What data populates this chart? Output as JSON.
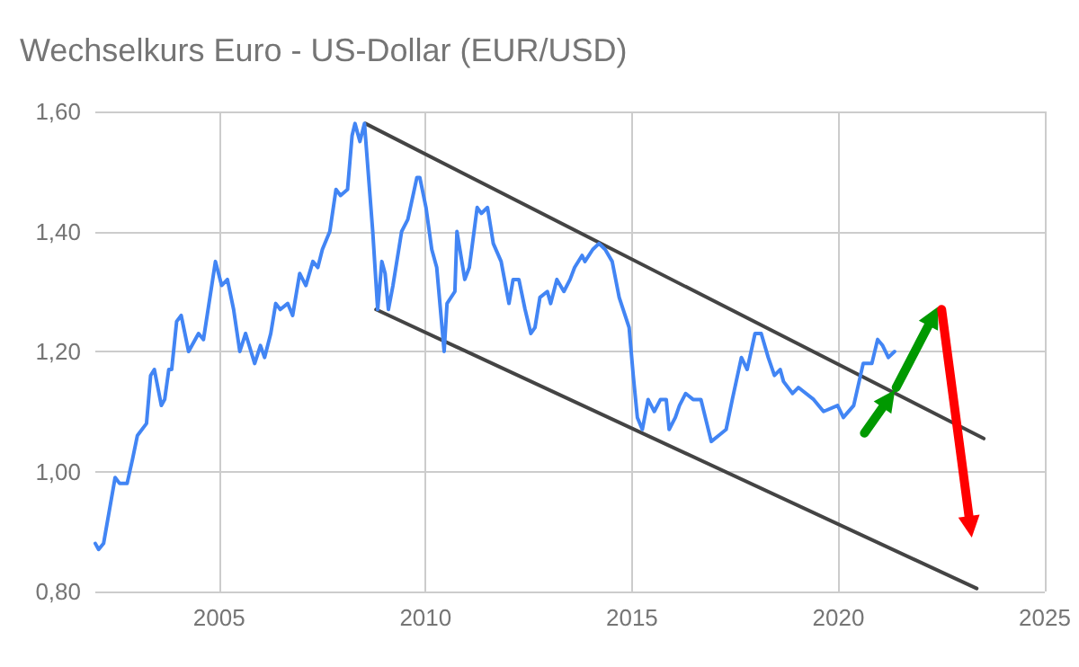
{
  "chart_data": {
    "type": "line",
    "title": "Wechselkurs Euro - US-Dollar (EUR/USD)",
    "xlim": [
      2002,
      2025
    ],
    "xticks": [
      2005,
      2010,
      2015,
      2020,
      2025
    ],
    "ylim": [
      0.8,
      1.6
    ],
    "yticks": [
      {
        "value": 0.8,
        "label": "0,80"
      },
      {
        "value": 1.0,
        "label": "1,00"
      },
      {
        "value": 1.2,
        "label": "1,20"
      },
      {
        "value": 1.4,
        "label": "1,40"
      },
      {
        "value": 1.6,
        "label": "1,60"
      }
    ],
    "grid": true,
    "marker": "none",
    "line_style": "solid",
    "series": [
      {
        "color": "#4285f4",
        "x": [
          2002.0,
          2002.08,
          2002.2,
          2002.48,
          2002.59,
          2002.77,
          2002.9,
          2003.02,
          2003.24,
          2003.34,
          2003.43,
          2003.6,
          2003.68,
          2003.78,
          2003.85,
          2003.97,
          2004.08,
          2004.26,
          2004.5,
          2004.62,
          2004.91,
          2005.06,
          2005.2,
          2005.35,
          2005.5,
          2005.64,
          2005.86,
          2006.0,
          2006.1,
          2006.25,
          2006.37,
          2006.48,
          2006.66,
          2006.78,
          2006.95,
          2007.1,
          2007.27,
          2007.39,
          2007.5,
          2007.68,
          2007.83,
          2007.94,
          2008.11,
          2008.22,
          2008.29,
          2008.41,
          2008.52,
          2008.62,
          2008.72,
          2008.84,
          2008.94,
          2009.02,
          2009.1,
          2009.21,
          2009.42,
          2009.57,
          2009.79,
          2009.86,
          2010.01,
          2010.15,
          2010.27,
          2010.45,
          2010.52,
          2010.71,
          2010.76,
          2010.95,
          2011.06,
          2011.25,
          2011.35,
          2011.5,
          2011.64,
          2011.83,
          2012.02,
          2012.12,
          2012.26,
          2012.41,
          2012.55,
          2012.65,
          2012.77,
          2012.95,
          2013.03,
          2013.18,
          2013.35,
          2013.5,
          2013.61,
          2013.79,
          2013.86,
          2014.05,
          2014.2,
          2014.35,
          2014.52,
          2014.69,
          2014.93,
          2015.03,
          2015.13,
          2015.25,
          2015.39,
          2015.54,
          2015.69,
          2015.83,
          2015.9,
          2016.05,
          2016.15,
          2016.3,
          2016.48,
          2016.67,
          2016.92,
          2017.1,
          2017.28,
          2017.43,
          2017.65,
          2017.79,
          2017.98,
          2018.13,
          2018.3,
          2018.45,
          2018.59,
          2018.67,
          2018.89,
          2019.03,
          2019.4,
          2019.64,
          2019.98,
          2020.12,
          2020.37,
          2020.6,
          2020.81,
          2020.95,
          2021.07,
          2021.21,
          2021.36
        ],
        "values": [
          0.88,
          0.87,
          0.88,
          0.99,
          0.98,
          0.98,
          1.02,
          1.06,
          1.08,
          1.16,
          1.17,
          1.11,
          1.12,
          1.17,
          1.17,
          1.25,
          1.26,
          1.2,
          1.23,
          1.22,
          1.35,
          1.31,
          1.32,
          1.27,
          1.2,
          1.23,
          1.18,
          1.21,
          1.19,
          1.23,
          1.28,
          1.27,
          1.28,
          1.26,
          1.33,
          1.31,
          1.35,
          1.34,
          1.37,
          1.4,
          1.47,
          1.46,
          1.47,
          1.56,
          1.58,
          1.55,
          1.58,
          1.49,
          1.4,
          1.27,
          1.35,
          1.33,
          1.27,
          1.31,
          1.4,
          1.42,
          1.49,
          1.49,
          1.44,
          1.37,
          1.34,
          1.2,
          1.28,
          1.3,
          1.4,
          1.32,
          1.34,
          1.44,
          1.43,
          1.44,
          1.38,
          1.35,
          1.28,
          1.32,
          1.32,
          1.27,
          1.23,
          1.24,
          1.29,
          1.3,
          1.28,
          1.32,
          1.3,
          1.32,
          1.34,
          1.36,
          1.35,
          1.37,
          1.38,
          1.37,
          1.35,
          1.29,
          1.24,
          1.16,
          1.09,
          1.07,
          1.12,
          1.1,
          1.12,
          1.12,
          1.07,
          1.09,
          1.11,
          1.13,
          1.12,
          1.12,
          1.05,
          1.06,
          1.07,
          1.12,
          1.19,
          1.17,
          1.23,
          1.23,
          1.19,
          1.16,
          1.17,
          1.15,
          1.13,
          1.14,
          1.12,
          1.1,
          1.11,
          1.09,
          1.11,
          1.18,
          1.18,
          1.22,
          1.21,
          1.19,
          1.2
        ]
      },
      {
        "type": "line",
        "color": "#444444",
        "x": [
          2008.54,
          2023.52
        ],
        "values": [
          1.58,
          1.055
        ]
      },
      {
        "type": "line",
        "color": "#444444",
        "x": [
          2008.8,
          2023.35
        ],
        "values": [
          1.27,
          0.805
        ]
      }
    ]
  }
}
